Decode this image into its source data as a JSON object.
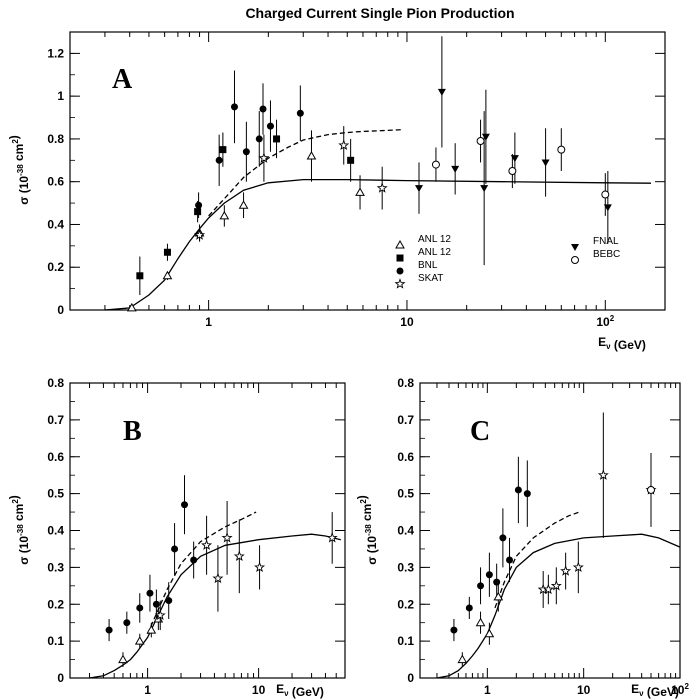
{
  "figure_title": "Charged Current Single Pion Production",
  "chart_data": [
    {
      "type": "scatter",
      "panel": "A",
      "x_scale": "log",
      "xlim": [
        0.2,
        200
      ],
      "ylim": [
        0,
        1.3
      ],
      "xlabel": "E_ν (GeV)",
      "ylabel": "σ (10^-38 cm^2)",
      "xticks": [
        {
          "v": 1,
          "label": "1"
        },
        {
          "v": 10,
          "label": "10"
        },
        {
          "v": 100,
          "label": "10^2"
        }
      ],
      "yticks": [
        {
          "v": 0,
          "label": "0"
        },
        {
          "v": 0.2,
          "label": "0.2"
        },
        {
          "v": 0.4,
          "label": "0.4"
        },
        {
          "v": 0.6,
          "label": "0.6"
        },
        {
          "v": 0.8,
          "label": "0.8"
        },
        {
          "v": 1,
          "label": "1"
        },
        {
          "v": 1.2,
          "label": "1.2"
        }
      ],
      "legend": [
        {
          "label": "ANL 12",
          "marker": "triangle-open",
          "column": 0
        },
        {
          "label": "ANL 12",
          "marker": "square-filled",
          "column": 0
        },
        {
          "label": "BNL",
          "marker": "circle-filled",
          "column": 0
        },
        {
          "label": "SKAT",
          "marker": "star-open",
          "column": 0
        },
        {
          "label": "FNAL",
          "marker": "triangle-down-filled",
          "column": 1
        },
        {
          "label": "BEBC",
          "marker": "circle-open",
          "column": 1
        }
      ],
      "series": [
        {
          "name": "ANL 12",
          "marker": "triangle-open",
          "points": [
            [
              0.41,
              0.01,
              0.0
            ],
            [
              0.62,
              0.16,
              0.02
            ],
            [
              0.9,
              0.36,
              0.04
            ],
            [
              1.2,
              0.44,
              0.05
            ],
            [
              1.5,
              0.49,
              0.06
            ],
            [
              3.3,
              0.72,
              0.12
            ],
            [
              5.8,
              0.55,
              0.08
            ]
          ]
        },
        {
          "name": "ANL 12",
          "marker": "square-filled",
          "points": [
            [
              0.45,
              0.16,
              0.09
            ],
            [
              0.62,
              0.27,
              0.04
            ],
            [
              0.88,
              0.46,
              0.05
            ],
            [
              1.18,
              0.75,
              0.08
            ],
            [
              2.2,
              0.8,
              0.09
            ],
            [
              5.2,
              0.7,
              0.1
            ]
          ]
        },
        {
          "name": "BNL",
          "marker": "circle-filled",
          "points": [
            [
              0.89,
              0.49,
              0.06
            ],
            [
              1.13,
              0.7,
              0.12
            ],
            [
              1.35,
              0.95,
              0.17
            ],
            [
              1.55,
              0.74,
              0.14
            ],
            [
              1.8,
              0.8,
              0.13
            ],
            [
              1.88,
              0.94,
              0.12
            ],
            [
              2.05,
              0.86,
              0.12
            ],
            [
              2.9,
              0.92,
              0.13
            ]
          ]
        },
        {
          "name": "SKAT",
          "marker": "star-open",
          "points": [
            [
              0.9,
              0.35,
              0.03
            ],
            [
              1.9,
              0.71,
              0.11
            ],
            [
              4.8,
              0.77,
              0.09
            ],
            [
              7.5,
              0.57,
              0.1
            ]
          ]
        },
        {
          "name": "FNAL",
          "marker": "triangle-down-filled",
          "points": [
            [
              11.5,
              0.57,
              0.12
            ],
            [
              15,
              1.02,
              0.26
            ],
            [
              17.5,
              0.66,
              0.12
            ],
            [
              24.5,
              0.57,
              0.36
            ],
            [
              25,
              0.81,
              0.22
            ],
            [
              35,
              0.71,
              0.12
            ],
            [
              50,
              0.69,
              0.16
            ],
            [
              103,
              0.48,
              0.17
            ]
          ]
        },
        {
          "name": "BEBC",
          "marker": "circle-open",
          "points": [
            [
              14,
              0.68,
              0.08
            ],
            [
              23.5,
              0.79,
              0.1
            ],
            [
              34,
              0.65,
              0.08
            ],
            [
              60,
              0.75,
              0.1
            ],
            [
              100,
              0.54,
              0.1
            ]
          ]
        }
      ],
      "curves": [
        {
          "style": "solid",
          "points": [
            [
              0.3,
              0.0
            ],
            [
              0.4,
              0.01
            ],
            [
              0.5,
              0.07
            ],
            [
              0.6,
              0.14
            ],
            [
              0.7,
              0.24
            ],
            [
              0.8,
              0.32
            ],
            [
              0.9,
              0.38
            ],
            [
              1.0,
              0.43
            ],
            [
              1.2,
              0.5
            ],
            [
              1.5,
              0.56
            ],
            [
              2,
              0.595
            ],
            [
              3,
              0.61
            ],
            [
              5,
              0.61
            ],
            [
              10,
              0.605
            ],
            [
              30,
              0.6
            ],
            [
              100,
              0.595
            ],
            [
              170,
              0.593
            ]
          ]
        },
        {
          "style": "dashed",
          "points": [
            [
              1.0,
              0.44
            ],
            [
              1.2,
              0.52
            ],
            [
              1.5,
              0.62
            ],
            [
              2,
              0.71
            ],
            [
              2.5,
              0.76
            ],
            [
              3,
              0.795
            ],
            [
              4,
              0.82
            ],
            [
              5,
              0.83
            ],
            [
              6,
              0.835
            ],
            [
              8,
              0.84
            ],
            [
              9.5,
              0.843
            ]
          ]
        }
      ]
    },
    {
      "type": "scatter",
      "panel": "B",
      "x_scale": "log",
      "xlim": [
        0.2,
        60
      ],
      "ylim": [
        0,
        0.8
      ],
      "xlabel": "E_ν (GeV)",
      "ylabel": "σ (10^-38 cm^2)",
      "xticks": [
        {
          "v": 1,
          "label": "1"
        },
        {
          "v": 10,
          "label": "10"
        }
      ],
      "yticks": [
        {
          "v": 0,
          "label": "0"
        },
        {
          "v": 0.1,
          "label": "0.1"
        },
        {
          "v": 0.2,
          "label": "0.2"
        },
        {
          "v": 0.3,
          "label": "0.3"
        },
        {
          "v": 0.4,
          "label": "0.4"
        },
        {
          "v": 0.5,
          "label": "0.5"
        },
        {
          "v": 0.6,
          "label": "0.6"
        },
        {
          "v": 0.7,
          "label": "0.7"
        },
        {
          "v": 0.8,
          "label": "0.8"
        }
      ],
      "series": [
        {
          "name": "circles",
          "marker": "circle-filled",
          "points": [
            [
              0.45,
              0.13,
              0.03
            ],
            [
              0.65,
              0.15,
              0.03
            ],
            [
              0.85,
              0.19,
              0.04
            ],
            [
              1.05,
              0.23,
              0.05
            ],
            [
              1.2,
              0.2,
              0.04
            ],
            [
              1.55,
              0.21,
              0.05
            ],
            [
              1.75,
              0.35,
              0.07
            ],
            [
              2.15,
              0.47,
              0.08
            ],
            [
              2.6,
              0.32,
              0.05
            ]
          ]
        },
        {
          "name": "triangles",
          "marker": "triangle-open",
          "points": [
            [
              0.6,
              0.05,
              0.02
            ],
            [
              0.85,
              0.1,
              0.02
            ],
            [
              1.08,
              0.13,
              0.02
            ],
            [
              1.25,
              0.16,
              0.03
            ]
          ]
        },
        {
          "name": "stars",
          "marker": "star-open",
          "points": [
            [
              1.3,
              0.17,
              0.04
            ],
            [
              3.4,
              0.36,
              0.08
            ],
            [
              4.3,
              0.27,
              0.09
            ],
            [
              5.2,
              0.38,
              0.1
            ],
            [
              6.7,
              0.33,
              0.1
            ],
            [
              10.2,
              0.3,
              0.06
            ],
            [
              46,
              0.38,
              0.07
            ]
          ]
        }
      ],
      "curves": [
        {
          "style": "solid",
          "points": [
            [
              0.3,
              0.0
            ],
            [
              0.4,
              0.006
            ],
            [
              0.5,
              0.02
            ],
            [
              0.6,
              0.035
            ],
            [
              0.7,
              0.05
            ],
            [
              0.8,
              0.07
            ],
            [
              1.0,
              0.11
            ],
            [
              1.2,
              0.16
            ],
            [
              1.5,
              0.22
            ],
            [
              2,
              0.28
            ],
            [
              3,
              0.33
            ],
            [
              5,
              0.36
            ],
            [
              10,
              0.375
            ],
            [
              20,
              0.385
            ],
            [
              30,
              0.39
            ],
            [
              40,
              0.385
            ],
            [
              55,
              0.375
            ]
          ]
        },
        {
          "style": "dashed",
          "points": [
            [
              1.0,
              0.12
            ],
            [
              1.5,
              0.24
            ],
            [
              2,
              0.31
            ],
            [
              3,
              0.37
            ],
            [
              5,
              0.41
            ],
            [
              7,
              0.43
            ],
            [
              9.5,
              0.45
            ]
          ]
        }
      ]
    },
    {
      "type": "scatter",
      "panel": "C",
      "x_scale": "log",
      "xlim": [
        0.2,
        100
      ],
      "ylim": [
        0,
        0.8
      ],
      "xlabel": "E_ν (GeV)",
      "ylabel": "σ (10^-38 cm^2)",
      "xticks": [
        {
          "v": 1,
          "label": "1"
        },
        {
          "v": 10,
          "label": "10"
        },
        {
          "v": 100,
          "label": "10^2"
        }
      ],
      "yticks": [
        {
          "v": 0,
          "label": "0"
        },
        {
          "v": 0.1,
          "label": "0.1"
        },
        {
          "v": 0.2,
          "label": "0.2"
        },
        {
          "v": 0.3,
          "label": "0.3"
        },
        {
          "v": 0.4,
          "label": "0.4"
        },
        {
          "v": 0.5,
          "label": "0.5"
        },
        {
          "v": 0.6,
          "label": "0.6"
        },
        {
          "v": 0.7,
          "label": "0.7"
        },
        {
          "v": 0.8,
          "label": "0.8"
        }
      ],
      "series": [
        {
          "name": "circles",
          "marker": "circle-filled",
          "points": [
            [
              0.45,
              0.13,
              0.03
            ],
            [
              0.65,
              0.19,
              0.03
            ],
            [
              0.85,
              0.25,
              0.05
            ],
            [
              1.05,
              0.28,
              0.06
            ],
            [
              1.25,
              0.26,
              0.05
            ],
            [
              1.45,
              0.38,
              0.08
            ],
            [
              1.7,
              0.32,
              0.06
            ],
            [
              2.1,
              0.51,
              0.09
            ],
            [
              2.6,
              0.5,
              0.09
            ]
          ]
        },
        {
          "name": "triangles",
          "marker": "triangle-open",
          "points": [
            [
              0.55,
              0.05,
              0.02
            ],
            [
              0.85,
              0.15,
              0.03
            ],
            [
              1.05,
              0.12,
              0.03
            ],
            [
              1.3,
              0.22,
              0.04
            ]
          ]
        },
        {
          "name": "stars",
          "marker": "star-open",
          "points": [
            [
              3.8,
              0.24,
              0.05
            ],
            [
              4.3,
              0.24,
              0.04
            ],
            [
              5.2,
              0.25,
              0.05
            ],
            [
              6.5,
              0.29,
              0.05
            ],
            [
              8.8,
              0.3,
              0.07
            ],
            [
              16,
              0.55,
              0.17
            ],
            [
              50,
              0.51,
              0.1
            ]
          ]
        },
        {
          "name": "open circle",
          "marker": "circle-open",
          "points": [
            [
              50,
              0.51,
              0.1
            ]
          ]
        }
      ],
      "curves": [
        {
          "style": "solid",
          "points": [
            [
              0.3,
              0.0
            ],
            [
              0.4,
              0.006
            ],
            [
              0.5,
              0.02
            ],
            [
              0.6,
              0.04
            ],
            [
              0.7,
              0.06
            ],
            [
              0.8,
              0.08
            ],
            [
              1.0,
              0.12
            ],
            [
              1.2,
              0.17
            ],
            [
              1.5,
              0.24
            ],
            [
              2,
              0.3
            ],
            [
              3,
              0.34
            ],
            [
              5,
              0.365
            ],
            [
              10,
              0.38
            ],
            [
              20,
              0.385
            ],
            [
              40,
              0.39
            ],
            [
              60,
              0.38
            ],
            [
              100,
              0.355
            ]
          ]
        },
        {
          "style": "dashed",
          "points": [
            [
              1.2,
              0.19
            ],
            [
              1.5,
              0.26
            ],
            [
              2,
              0.33
            ],
            [
              3,
              0.38
            ],
            [
              5,
              0.42
            ],
            [
              7,
              0.44
            ],
            [
              9,
              0.45
            ]
          ]
        }
      ]
    }
  ]
}
